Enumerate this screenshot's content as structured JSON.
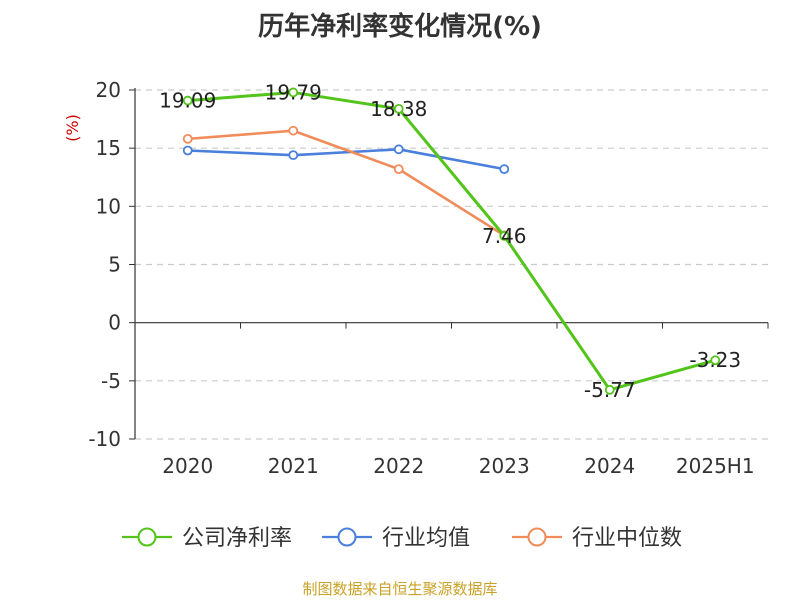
{
  "source": "制图数据来自恒生聚源数据库",
  "chart_data": {
    "type": "line",
    "title": "历年净利率变化情况(%)",
    "ylabel": "(%)",
    "xlabel": "",
    "categories": [
      "2020",
      "2021",
      "2022",
      "2023",
      "2024",
      "2025H1"
    ],
    "ylim": [
      -10,
      20
    ],
    "yticks": [
      20,
      15,
      10,
      5,
      0,
      -5,
      -10
    ],
    "grid": true,
    "legend_position": "bottom",
    "series": [
      {
        "name": "公司净利率",
        "color": "#52c41a",
        "values": [
          19.09,
          19.79,
          18.38,
          7.46,
          -5.77,
          -3.23
        ],
        "labels": [
          "19.09",
          "19.79",
          "18.38",
          "7.46",
          "-5.77",
          "-3.23"
        ]
      },
      {
        "name": "行业均值",
        "color": "#4a7fdc",
        "values": [
          14.8,
          14.4,
          14.9,
          13.2,
          null,
          null
        ]
      },
      {
        "name": "行业中位数",
        "color": "#f08c5a",
        "values": [
          15.8,
          16.5,
          13.2,
          7.5,
          null,
          null
        ]
      }
    ]
  }
}
